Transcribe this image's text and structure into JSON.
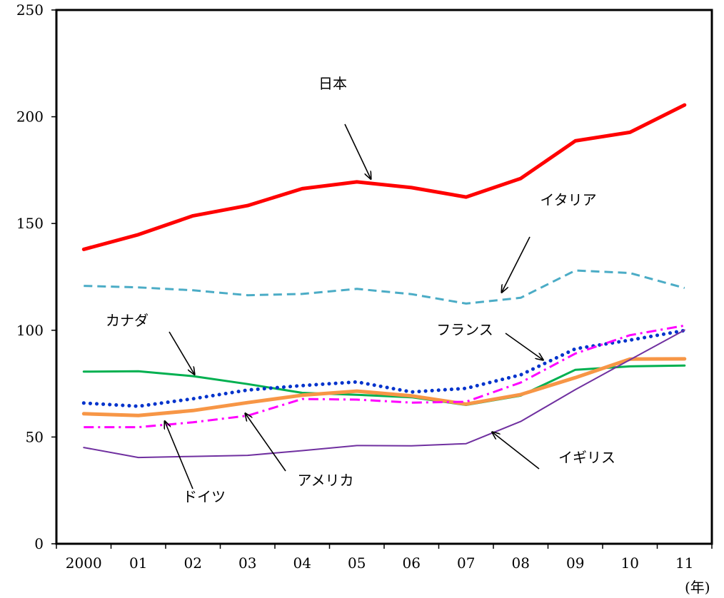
{
  "chart_data": {
    "type": "line",
    "title": "",
    "xlabel": "",
    "ylabel": "",
    "x_unit": "(年)",
    "categories": [
      "2000",
      "01",
      "02",
      "03",
      "04",
      "05",
      "06",
      "07",
      "08",
      "09",
      "10",
      "11"
    ],
    "ylim": [
      0,
      250
    ],
    "yticks": [
      0,
      50,
      100,
      150,
      200,
      250
    ],
    "grid": false,
    "legend": "none",
    "series": [
      {
        "name": "日本",
        "color": "#ff0000",
        "style": "solid-thick",
        "values": [
          137.9,
          144.8,
          153.6,
          158.4,
          166.3,
          169.5,
          166.8,
          162.4,
          171.1,
          188.7,
          192.7,
          205.5
        ]
      },
      {
        "name": "イタリア",
        "color": "#4bacc6",
        "style": "dashed",
        "values": [
          120.8,
          120.1,
          118.7,
          116.4,
          117.0,
          119.4,
          116.9,
          112.5,
          115.2,
          128.0,
          126.8,
          119.8
        ]
      },
      {
        "name": "カナダ",
        "color": "#00b050",
        "style": "solid",
        "values": [
          80.6,
          80.8,
          78.5,
          74.8,
          70.7,
          69.8,
          68.6,
          65.0,
          69.4,
          81.5,
          83.1,
          83.5
        ]
      },
      {
        "name": "フランス",
        "color": "#0033cc",
        "style": "dotted",
        "values": [
          65.9,
          64.4,
          67.9,
          72.0,
          74.1,
          75.8,
          71.1,
          72.8,
          79.1,
          91.3,
          95.4,
          99.9
        ]
      },
      {
        "name": "ドイツ",
        "color": "#f79646",
        "style": "solid-thick",
        "values": [
          60.9,
          60.1,
          62.4,
          66.1,
          69.6,
          71.5,
          69.3,
          65.4,
          69.9,
          77.8,
          86.5,
          86.6
        ]
      },
      {
        "name": "アメリカ",
        "color": "#ff00ff",
        "style": "dash-dot",
        "values": [
          54.6,
          54.6,
          56.9,
          60.0,
          67.8,
          67.5,
          66.1,
          66.5,
          75.5,
          89.1,
          97.7,
          102.2
        ]
      },
      {
        "name": "イギリス",
        "color": "#7030a0",
        "style": "solid-thin",
        "values": [
          45.1,
          40.4,
          40.9,
          41.4,
          43.6,
          46.0,
          45.9,
          46.9,
          57.3,
          72.2,
          86.2,
          100.1
        ]
      }
    ],
    "annotations": [
      "日本",
      "イタリア",
      "カナダ",
      "フランス",
      "ドイツ",
      "アメリカ",
      "イギリス"
    ]
  }
}
